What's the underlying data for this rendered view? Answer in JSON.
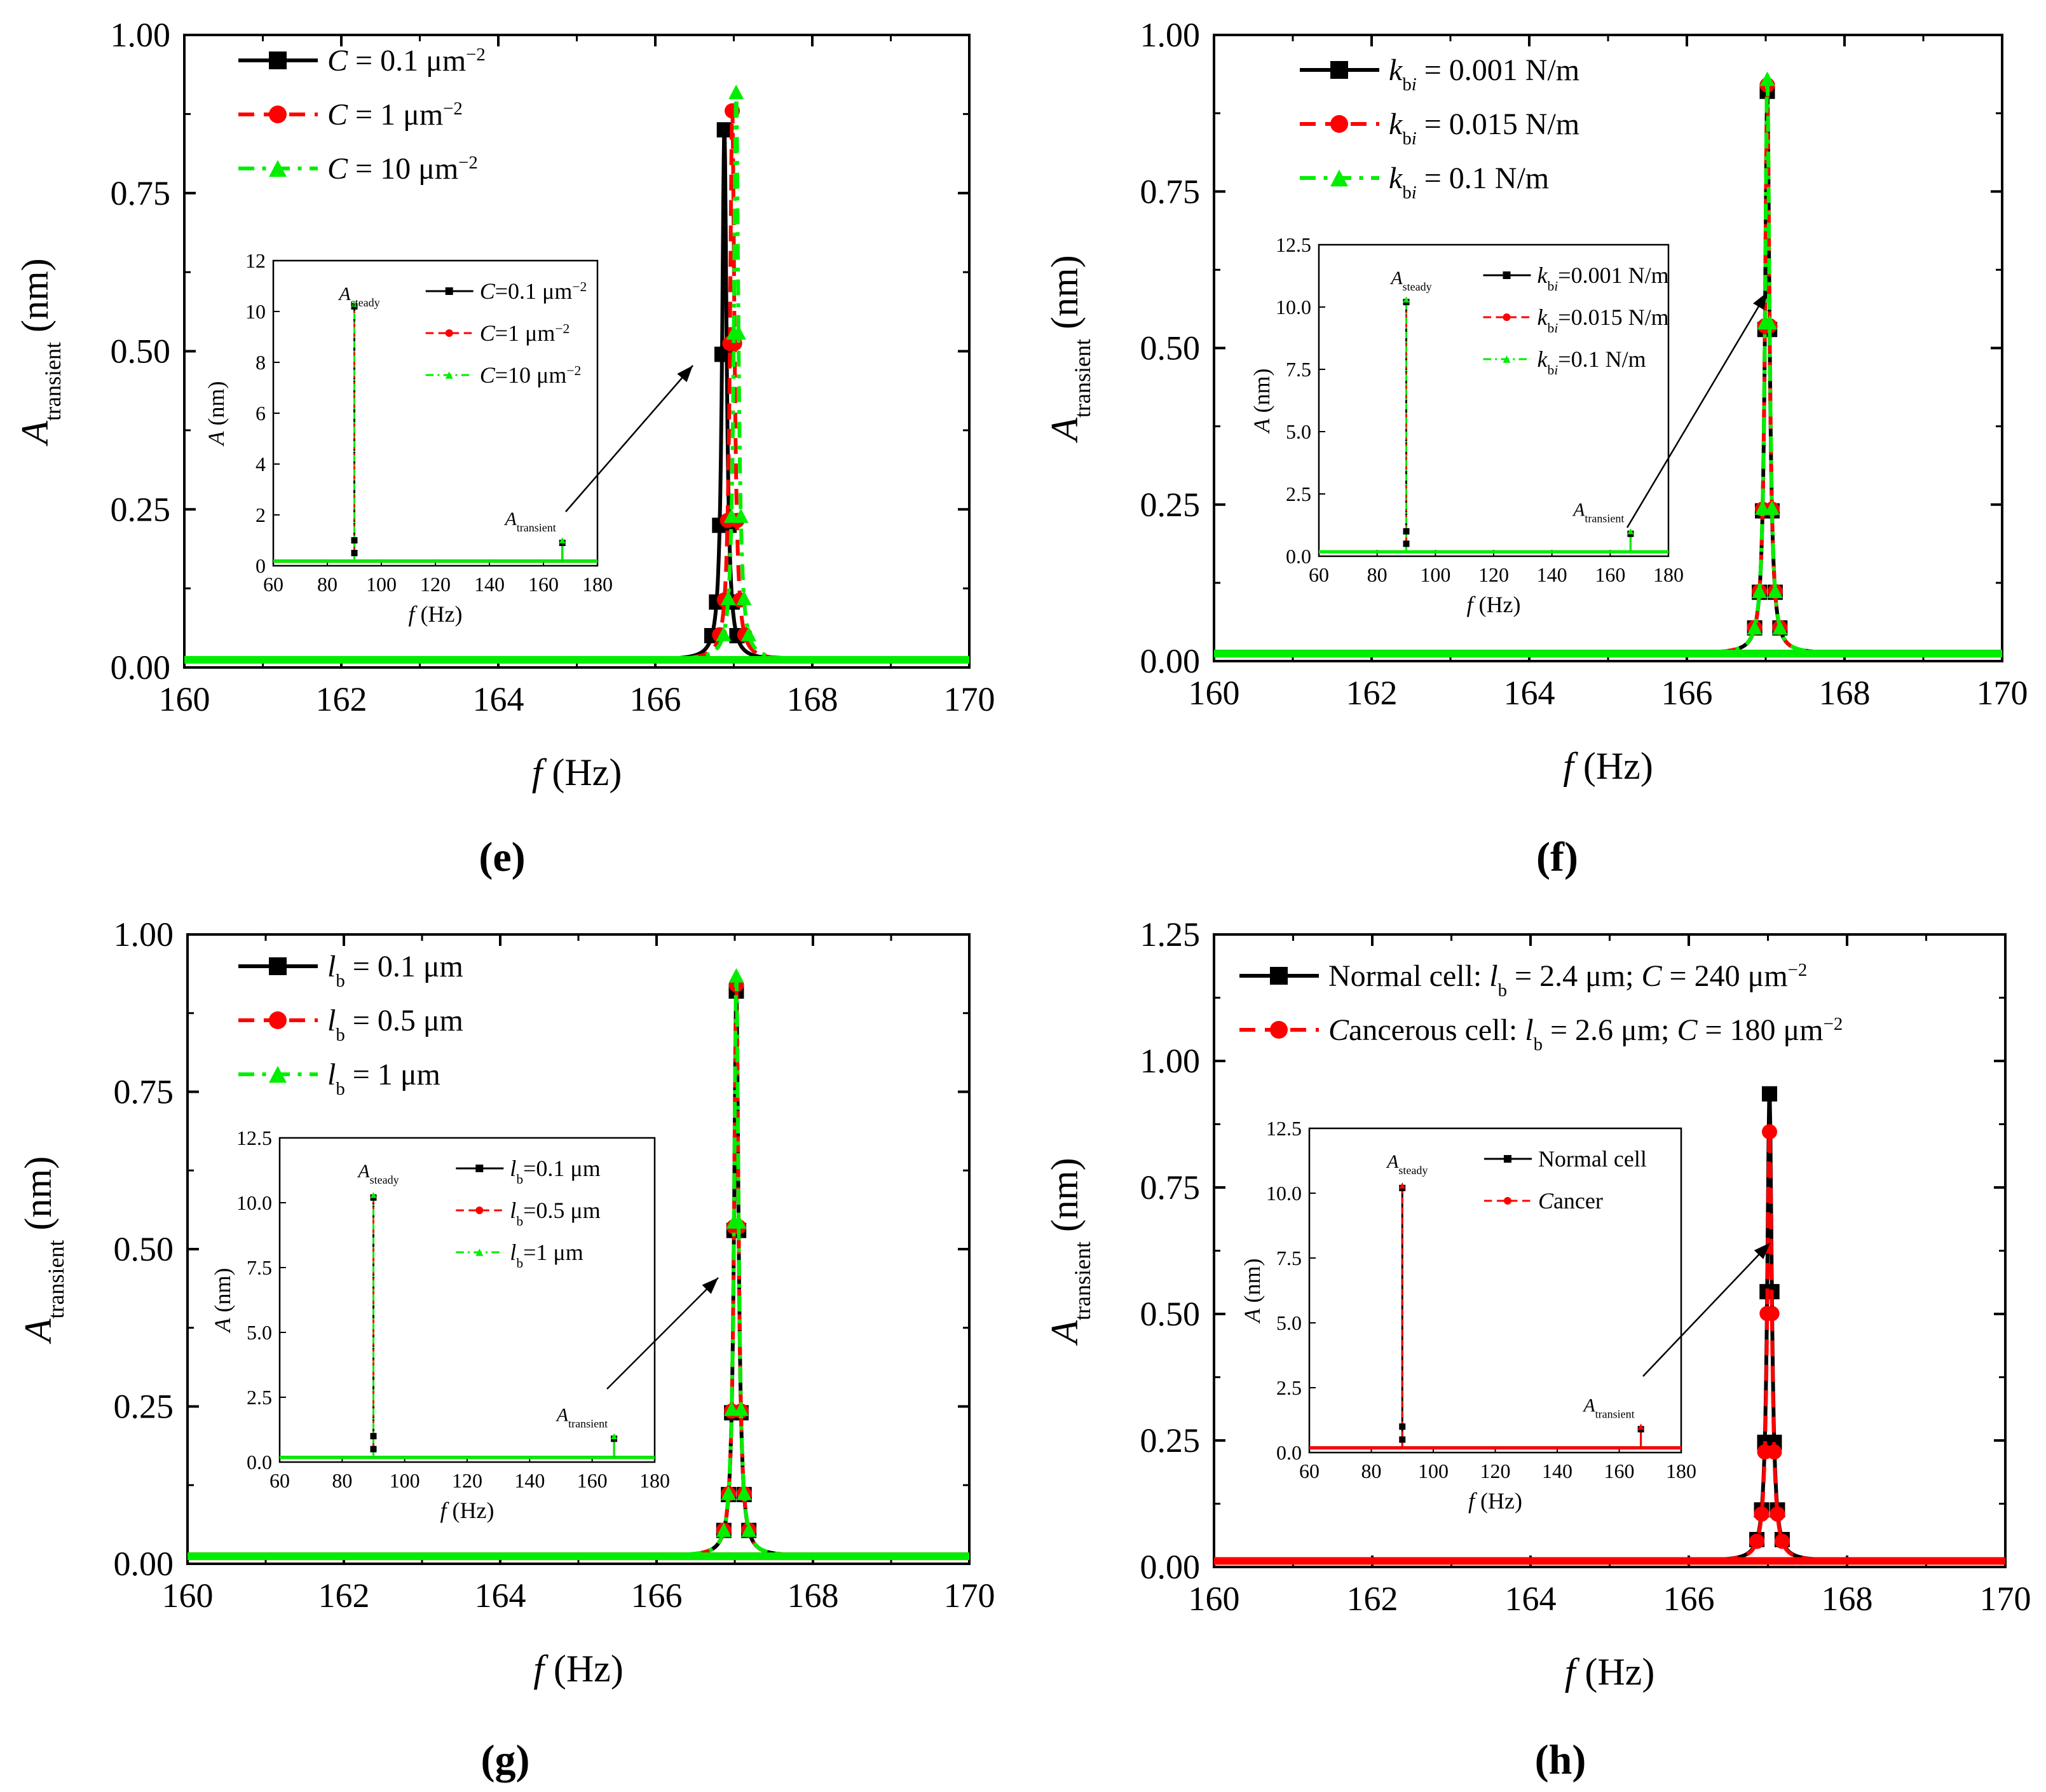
{
  "chart_data": [
    {
      "type": "line",
      "panel_label": "e",
      "xlabel": "f (Hz)",
      "ylabel": "Atransient (nm)",
      "xlim": [
        160,
        170
      ],
      "ylim": [
        0,
        1.0
      ],
      "x_ticks": [
        "160",
        "162",
        "164",
        "166",
        "168",
        "170"
      ],
      "y_ticks": [
        "0.00",
        "0.25",
        "0.50",
        "0.75",
        "1.00"
      ],
      "series": [
        {
          "name": "C = 0.1 μm−2",
          "color": "#000000",
          "marker": "square",
          "dash": "solid",
          "peak_f": 166.88,
          "peak_a": 0.85
        },
        {
          "name": "C = 1 μm−2",
          "color": "#ff0000",
          "marker": "circle",
          "dash": "dash",
          "peak_f": 166.98,
          "peak_a": 0.88
        },
        {
          "name": "C = 10 μm−2",
          "color": "#00ee00",
          "marker": "triangle",
          "dash": "dashdot",
          "peak_f": 167.03,
          "peak_a": 0.91
        }
      ],
      "inset": {
        "xlabel": "f (Hz)",
        "ylabel": "A (nm)",
        "xlim": [
          60,
          180
        ],
        "ylim": [
          0,
          12
        ],
        "x_ticks": [
          "60",
          "80",
          "100",
          "120",
          "140",
          "160",
          "180"
        ],
        "y_ticks": [
          "0",
          "2",
          "4",
          "6",
          "8",
          "10",
          "12"
        ],
        "legend": [
          "C=0.1 μm−2",
          "C=1 μm−2",
          "C=10 μm−2"
        ],
        "steady_label": "Asteady",
        "transient_label": "Atransient",
        "steady_f": 90,
        "steady_a": 10.2,
        "transient_f": 167,
        "transient_a": 0.9
      }
    },
    {
      "type": "line",
      "panel_label": "f",
      "xlabel": "f (Hz)",
      "ylabel": "Atransient (nm)",
      "xlim": [
        160,
        170
      ],
      "ylim": [
        0,
        1.0
      ],
      "x_ticks": [
        "160",
        "162",
        "164",
        "166",
        "168",
        "170"
      ],
      "y_ticks": [
        "0.00",
        "0.25",
        "0.50",
        "0.75",
        "1.00"
      ],
      "series": [
        {
          "name": "kbi = 0.001 N/m",
          "color": "#000000",
          "marker": "square",
          "dash": "solid",
          "peak_f": 167.02,
          "peak_a": 0.91
        },
        {
          "name": "kbi = 0.015 N/m",
          "color": "#ff0000",
          "marker": "circle",
          "dash": "dash",
          "peak_f": 167.02,
          "peak_a": 0.92
        },
        {
          "name": "kbi = 0.1 N/m",
          "color": "#00ee00",
          "marker": "triangle",
          "dash": "dashdot",
          "peak_f": 167.02,
          "peak_a": 0.93
        }
      ],
      "inset": {
        "xlabel": "f (Hz)",
        "ylabel": "A (nm)",
        "xlim": [
          60,
          180
        ],
        "ylim": [
          0,
          12.5
        ],
        "x_ticks": [
          "60",
          "80",
          "100",
          "120",
          "140",
          "160",
          "180"
        ],
        "y_ticks": [
          "0.0",
          "2.5",
          "5.0",
          "7.5",
          "10.0",
          "12.5"
        ],
        "legend": [
          "kbi=0.001 N/m",
          "kbi=0.015 N/m",
          "kbi=0.1 N/m"
        ],
        "steady_label": "Asteady",
        "transient_label": "Atransient",
        "steady_f": 90,
        "steady_a": 10.2,
        "transient_f": 167,
        "transient_a": 0.9
      }
    },
    {
      "type": "line",
      "panel_label": "g",
      "xlabel": "f (Hz)",
      "ylabel": "Atransient (nm)",
      "xlim": [
        160,
        170
      ],
      "ylim": [
        0,
        1.0
      ],
      "x_ticks": [
        "160",
        "162",
        "164",
        "166",
        "168",
        "170"
      ],
      "y_ticks": [
        "0.00",
        "0.25",
        "0.50",
        "0.75",
        "1.00"
      ],
      "series": [
        {
          "name": "lb = 0.1 μm",
          "color": "#000000",
          "marker": "square",
          "dash": "solid",
          "peak_f": 167.02,
          "peak_a": 0.91
        },
        {
          "name": "lb = 0.5 μm",
          "color": "#ff0000",
          "marker": "circle",
          "dash": "dash",
          "peak_f": 167.02,
          "peak_a": 0.92
        },
        {
          "name": "lb = 1 μm",
          "color": "#00ee00",
          "marker": "triangle",
          "dash": "dashdot",
          "peak_f": 167.02,
          "peak_a": 0.935
        }
      ],
      "inset": {
        "xlabel": "f (Hz)",
        "ylabel": "A (nm)",
        "xlim": [
          60,
          180
        ],
        "ylim": [
          0,
          12.5
        ],
        "x_ticks": [
          "60",
          "80",
          "100",
          "120",
          "140",
          "160",
          "180"
        ],
        "y_ticks": [
          "0.0",
          "2.5",
          "5.0",
          "7.5",
          "10.0",
          "12.5"
        ],
        "legend": [
          "lb=0.1 μm",
          "lb=0.5 μm",
          "lb=1 μm"
        ],
        "steady_label": "Asteady",
        "transient_label": "Atransient",
        "steady_f": 90,
        "steady_a": 10.2,
        "transient_f": 167,
        "transient_a": 0.9
      }
    },
    {
      "type": "line",
      "panel_label": "h",
      "xlabel": "f (Hz)",
      "ylabel": "Atransient (nm)",
      "xlim": [
        160,
        170
      ],
      "ylim": [
        0,
        1.25
      ],
      "x_ticks": [
        "160",
        "162",
        "164",
        "166",
        "168",
        "170"
      ],
      "y_ticks": [
        "0.00",
        "0.25",
        "0.50",
        "0.75",
        "1.00",
        "1.25"
      ],
      "series": [
        {
          "name": "Normal cell: lb = 2.4 μm; C = 240 μm−2",
          "color": "#000000",
          "marker": "square",
          "dash": "solid",
          "peak_f": 167.02,
          "peak_a": 0.935
        },
        {
          "name": "Cancerous cell: lb = 2.6 μm; C = 180 μm−2",
          "color": "#ff0000",
          "marker": "circle",
          "dash": "dash",
          "peak_f": 167.02,
          "peak_a": 0.86
        }
      ],
      "inset": {
        "xlabel": "f (Hz)",
        "ylabel": "A (nm)",
        "xlim": [
          60,
          180
        ],
        "ylim": [
          0,
          12.5
        ],
        "x_ticks": [
          "60",
          "80",
          "100",
          "120",
          "140",
          "160",
          "180"
        ],
        "y_ticks": [
          "0.0",
          "2.5",
          "5.0",
          "7.5",
          "10.0",
          "12.5"
        ],
        "legend": [
          "Normal cell",
          "Cancer"
        ],
        "steady_label": "Asteady",
        "transient_label": "Atransient",
        "steady_f": 90,
        "steady_a": 10.2,
        "transient_f": 167,
        "transient_a": 0.9
      }
    }
  ]
}
